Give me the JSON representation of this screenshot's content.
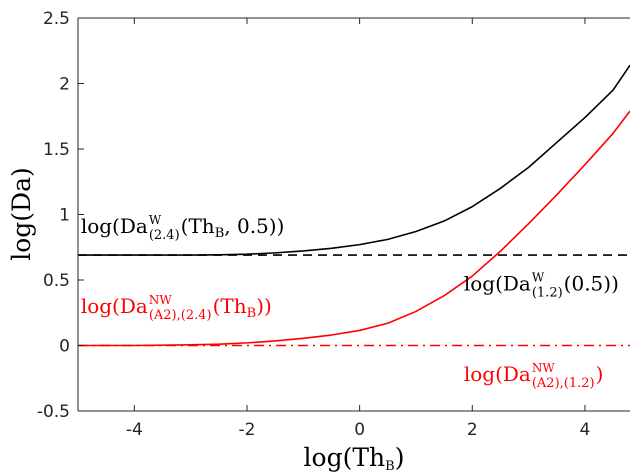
{
  "chart_data": {
    "type": "line",
    "xlabel": "log(Th_B)",
    "ylabel": "log(Da)",
    "xlim": [
      -5,
      4.8
    ],
    "ylim": [
      -0.5,
      2.5
    ],
    "xticks": [
      -4,
      -2,
      0,
      2,
      4
    ],
    "xtick_labels": [
      "-4",
      "-2",
      "0",
      "2",
      "4"
    ],
    "yticks": [
      -0.5,
      0,
      0.5,
      1,
      1.5,
      2,
      2.5
    ],
    "ytick_labels": [
      "-0.5",
      "0",
      "0.5",
      "1",
      "1.5",
      "2",
      "2.5"
    ],
    "grid": false,
    "series": [
      {
        "color": "#000000",
        "style": "solid",
        "x": [
          -5,
          -4,
          -3,
          -2.5,
          -2,
          -1.5,
          -1,
          -0.5,
          0,
          0.5,
          1,
          1.5,
          2,
          2.5,
          3,
          3.5,
          4,
          4.5,
          4.8
        ],
        "y": [
          0.69,
          0.69,
          0.69,
          0.692,
          0.697,
          0.707,
          0.722,
          0.742,
          0.77,
          0.81,
          0.87,
          0.95,
          1.06,
          1.2,
          1.36,
          1.55,
          1.74,
          1.95,
          2.14
        ]
      },
      {
        "color": "#ff0000",
        "style": "solid",
        "x": [
          -5,
          -4,
          -3,
          -2.5,
          -2,
          -1.5,
          -1,
          -0.5,
          0,
          0.5,
          1,
          1.5,
          2,
          2.5,
          3,
          3.5,
          4,
          4.5,
          4.8
        ],
        "y": [
          0.0,
          0.0,
          0.005,
          0.01,
          0.02,
          0.035,
          0.055,
          0.08,
          0.115,
          0.17,
          0.26,
          0.38,
          0.53,
          0.72,
          0.93,
          1.15,
          1.38,
          1.62,
          1.79
        ]
      },
      {
        "color": "#000000",
        "style": "dashed",
        "x": [
          -5,
          4.8
        ],
        "y": [
          0.69,
          0.69
        ]
      },
      {
        "color": "#ff0000",
        "style": "dashdot",
        "x": [
          -5,
          4.8
        ],
        "y": [
          0.0,
          0.0
        ]
      }
    ],
    "annotations": [
      {
        "id": "black_curve",
        "color": "#000000",
        "x": -4.95,
        "y": 0.86,
        "pre": "log(Da",
        "sup": "W",
        "sub": "(2.4)",
        "post": "(Th_B, 0.5))"
      },
      {
        "id": "black_dashed",
        "color": "#000000",
        "x": 1.85,
        "y": 0.42,
        "pre": "log(Da",
        "sup": "W",
        "sub": "(1.2)",
        "post": "(0.5))"
      },
      {
        "id": "red_curve",
        "color": "#ff0000",
        "x": -4.95,
        "y": 0.25,
        "pre": "log(Da",
        "sup": "NW",
        "sub": "(A2),(2.4)",
        "post": "(Th_B))"
      },
      {
        "id": "red_dashdot",
        "color": "#ff0000",
        "x": 1.85,
        "y": -0.27,
        "pre": "log(Da",
        "sup": "NW",
        "sub": "(A2),(1.2)",
        "post": ")"
      }
    ]
  }
}
